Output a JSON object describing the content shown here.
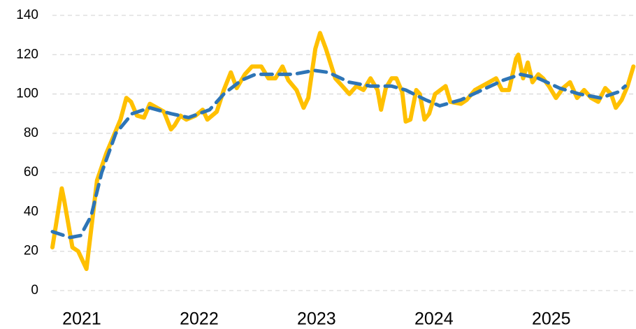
{
  "chart_data": {
    "type": "line",
    "xlim": [
      2020.75,
      2025.71
    ],
    "xticks": [
      2021,
      2022,
      2023,
      2024,
      2025
    ],
    "ylim": [
      0,
      140
    ],
    "yticks": [
      0,
      20,
      40,
      60,
      80,
      100,
      120,
      140
    ],
    "grid": true,
    "series": [
      {
        "color": "#ffc000",
        "style": "solid",
        "x": [
          2020.75,
          2020.83,
          2020.85,
          2020.92,
          2020.97,
          2021.04,
          2021.13,
          2021.21,
          2021.26,
          2021.33,
          2021.38,
          2021.42,
          2021.47,
          2021.53,
          2021.58,
          2021.64,
          2021.7,
          2021.76,
          2021.79,
          2021.84,
          2021.89,
          2021.97,
          2022.03,
          2022.07,
          2022.15,
          2022.21,
          2022.27,
          2022.32,
          2022.39,
          2022.45,
          2022.53,
          2022.59,
          2022.65,
          2022.71,
          2022.76,
          2022.83,
          2022.89,
          2022.93,
          2022.99,
          2023.03,
          2023.08,
          2023.16,
          2023.22,
          2023.28,
          2023.34,
          2023.4,
          2023.46,
          2023.52,
          2023.55,
          2023.59,
          2023.64,
          2023.68,
          2023.73,
          2023.76,
          2023.8,
          2023.85,
          2023.88,
          2023.92,
          2023.96,
          2024.01,
          2024.1,
          2024.14,
          2024.23,
          2024.28,
          2024.35,
          2024.41,
          2024.47,
          2024.53,
          2024.58,
          2024.64,
          2024.7,
          2024.72,
          2024.76,
          2024.8,
          2024.84,
          2024.89,
          2024.93,
          2024.98,
          2025.04,
          2025.1,
          2025.16,
          2025.22,
          2025.28,
          2025.34,
          2025.4,
          2025.46,
          2025.51,
          2025.55,
          2025.6,
          2025.65,
          2025.7
        ],
        "values": [
          22,
          52,
          46,
          22,
          20,
          11,
          56,
          70,
          77,
          87,
          98,
          96,
          89,
          88,
          95,
          93,
          91,
          82,
          84,
          89,
          87,
          89,
          92,
          87,
          91,
          102,
          111,
          103,
          110,
          114,
          114,
          108,
          108,
          114,
          107,
          102,
          93,
          98,
          123,
          131,
          123,
          108,
          104,
          100,
          104,
          102,
          108,
          102,
          92,
          103,
          108,
          108,
          101,
          86,
          87,
          102,
          100,
          87,
          90,
          100,
          104,
          96,
          95,
          97,
          102,
          104,
          106,
          108,
          102,
          102,
          118,
          120,
          108,
          116,
          106,
          110,
          108,
          104,
          98,
          103,
          106,
          98,
          102,
          98,
          96,
          103,
          100,
          93,
          97,
          104,
          114
        ]
      },
      {
        "color": "#2e75b6",
        "style": "dashed",
        "x": [
          2020.75,
          2020.9,
          2020.99,
          2021.08,
          2021.17,
          2021.29,
          2021.43,
          2021.58,
          2021.76,
          2021.91,
          2022.09,
          2022.21,
          2022.36,
          2022.48,
          2022.63,
          2022.8,
          2022.98,
          2023.1,
          2023.28,
          2023.46,
          2023.64,
          2023.76,
          2023.93,
          2024.05,
          2024.23,
          2024.41,
          2024.59,
          2024.74,
          2024.89,
          2025.07,
          2025.24,
          2025.42,
          2025.57,
          2025.63
        ],
        "values": [
          30,
          27,
          28,
          38,
          60,
          80,
          90,
          93,
          90,
          88,
          92,
          100,
          107,
          110,
          110,
          110,
          112,
          111,
          106,
          104,
          104,
          102,
          97,
          94,
          97,
          102,
          107,
          110,
          108,
          103,
          100,
          98,
          101,
          104
        ]
      }
    ]
  }
}
